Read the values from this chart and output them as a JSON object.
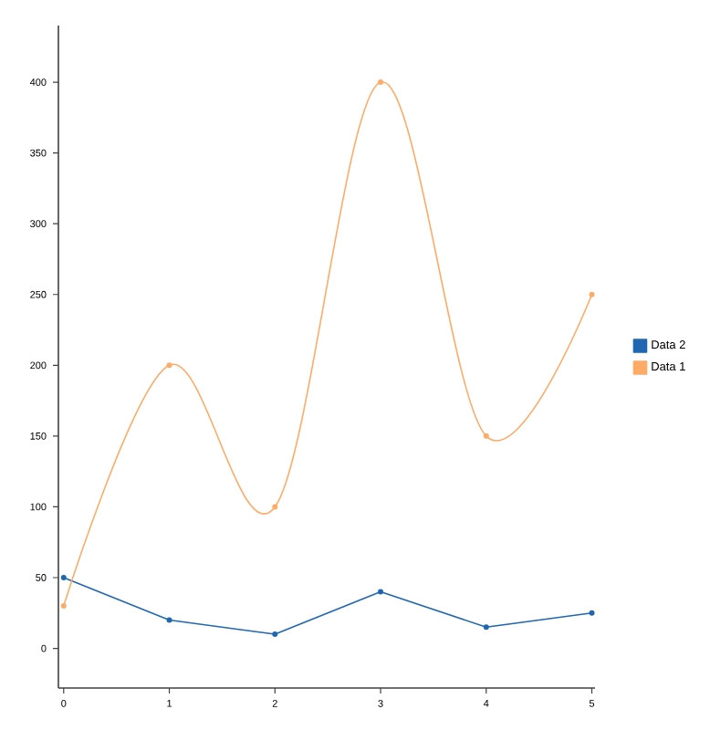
{
  "chart_data": {
    "type": "line",
    "x": [
      0,
      1,
      2,
      3,
      4,
      5
    ],
    "series": [
      {
        "name": "Data 2",
        "color": "#1f67b1",
        "values": [
          50,
          20,
          10,
          40,
          15,
          25
        ]
      },
      {
        "name": "Data 1",
        "color": "#fdab67",
        "values": [
          30,
          200,
          100,
          400,
          150,
          250
        ]
      }
    ],
    "xlim": [
      -0.05,
      5.03
    ],
    "ylim": [
      -28,
      440
    ],
    "xticks": [
      0,
      1,
      2,
      3,
      4,
      5
    ],
    "yticks": [
      0,
      50,
      100,
      150,
      200,
      250,
      300,
      350,
      400
    ],
    "marker": "circle",
    "legend": "right",
    "grid": false
  }
}
